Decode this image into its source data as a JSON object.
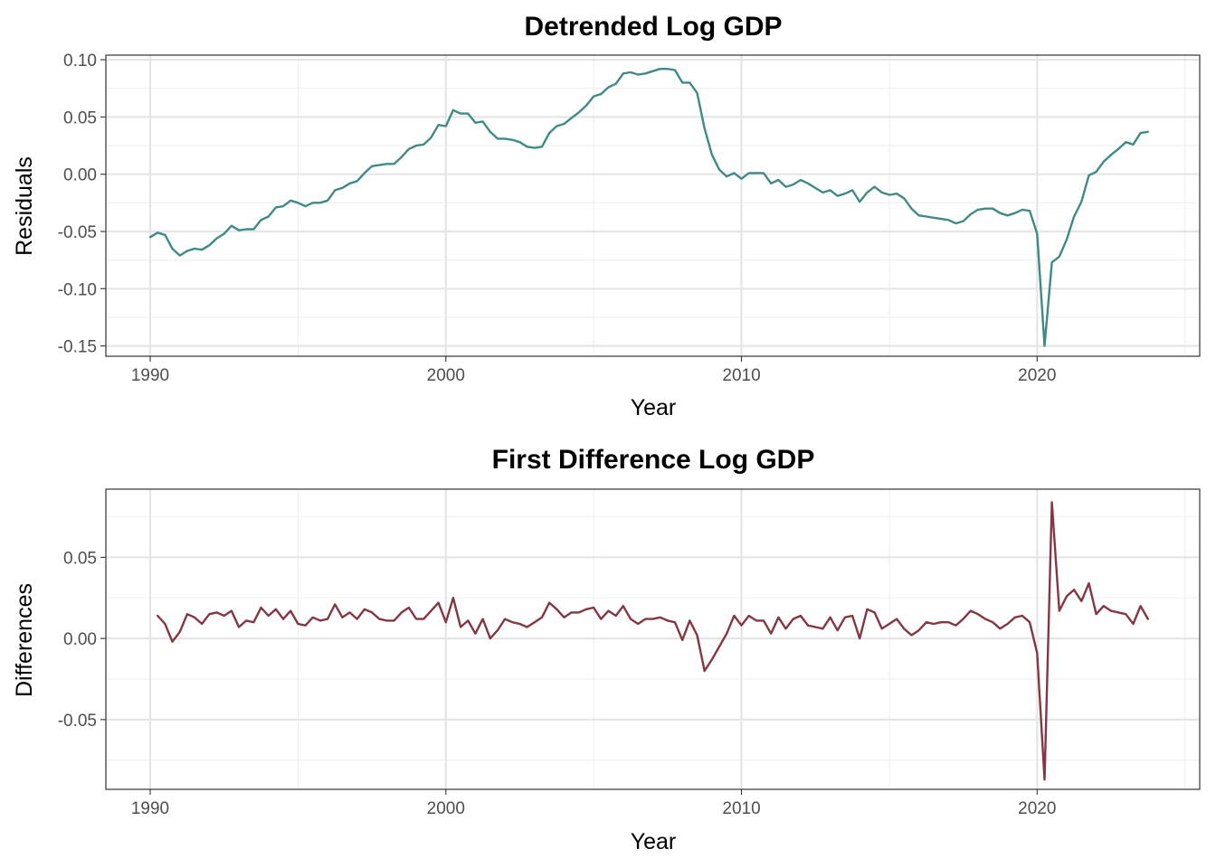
{
  "chart_data": [
    {
      "type": "line",
      "title": "Detrended Log GDP",
      "xlabel": "Year",
      "ylabel": "Residuals",
      "xlim": [
        1988.5,
        2025.5
      ],
      "ylim": [
        -0.159,
        0.104
      ],
      "xticks": [
        1990,
        2000,
        2010,
        2020
      ],
      "xtick_labels": [
        "1990",
        "2000",
        "2010",
        "2020"
      ],
      "yticks": [
        -0.15,
        -0.1,
        -0.05,
        0.0,
        0.05,
        0.1
      ],
      "ytick_labels": [
        "-0.15",
        "-0.10",
        "-0.05",
        "0.00",
        "0.05",
        "0.10"
      ],
      "grid": true,
      "color": "#3f8a86",
      "series": [
        {
          "x": [
            1990.0,
            1990.25,
            1990.5,
            1990.75,
            1991.0,
            1991.25,
            1991.5,
            1991.75,
            1992.0,
            1992.25,
            1992.5,
            1992.75,
            1993.0,
            1993.25,
            1993.5,
            1993.75,
            1994.0,
            1994.25,
            1994.5,
            1994.75,
            1995.0,
            1995.25,
            1995.5,
            1995.75,
            1996.0,
            1996.25,
            1996.5,
            1996.75,
            1997.0,
            1997.25,
            1997.5,
            1997.75,
            1998.0,
            1998.25,
            1998.5,
            1998.75,
            1999.0,
            1999.25,
            1999.5,
            1999.75,
            2000.0,
            2000.25,
            2000.5,
            2000.75,
            2001.0,
            2001.25,
            2001.5,
            2001.75,
            2002.0,
            2002.25,
            2002.5,
            2002.75,
            2003.0,
            2003.25,
            2003.5,
            2003.75,
            2004.0,
            2004.25,
            2004.5,
            2004.75,
            2005.0,
            2005.25,
            2005.5,
            2005.75,
            2006.0,
            2006.25,
            2006.5,
            2006.75,
            2007.0,
            2007.25,
            2007.5,
            2007.75,
            2008.0,
            2008.25,
            2008.5,
            2008.75,
            2009.0,
            2009.25,
            2009.5,
            2009.75,
            2010.0,
            2010.25,
            2010.5,
            2010.75,
            2011.0,
            2011.25,
            2011.5,
            2011.75,
            2012.0,
            2012.25,
            2012.5,
            2012.75,
            2013.0,
            2013.25,
            2013.5,
            2013.75,
            2014.0,
            2014.25,
            2014.5,
            2014.75,
            2015.0,
            2015.25,
            2015.5,
            2015.75,
            2016.0,
            2016.25,
            2016.5,
            2016.75,
            2017.0,
            2017.25,
            2017.5,
            2017.75,
            2018.0,
            2018.25,
            2018.5,
            2018.75,
            2019.0,
            2019.25,
            2019.5,
            2019.75,
            2020.0,
            2020.25,
            2020.5,
            2020.75,
            2021.0,
            2021.25,
            2021.5,
            2021.75,
            2022.0,
            2022.25,
            2022.5,
            2022.75,
            2023.0,
            2023.25,
            2023.5,
            2023.75
          ],
          "values": [
            -0.055,
            -0.051,
            -0.053,
            -0.065,
            -0.071,
            -0.067,
            -0.065,
            -0.066,
            -0.062,
            -0.056,
            -0.052,
            -0.045,
            -0.049,
            -0.048,
            -0.048,
            -0.04,
            -0.037,
            -0.029,
            -0.028,
            -0.023,
            -0.025,
            -0.028,
            -0.025,
            -0.025,
            -0.023,
            -0.014,
            -0.012,
            -0.008,
            -0.006,
            0.001,
            0.007,
            0.008,
            0.009,
            0.009,
            0.015,
            0.022,
            0.025,
            0.026,
            0.032,
            0.043,
            0.042,
            0.056,
            0.053,
            0.053,
            0.045,
            0.046,
            0.037,
            0.031,
            0.031,
            0.03,
            0.028,
            0.024,
            0.023,
            0.024,
            0.036,
            0.042,
            0.044,
            0.049,
            0.054,
            0.06,
            0.068,
            0.07,
            0.076,
            0.079,
            0.088,
            0.089,
            0.087,
            0.088,
            0.09,
            0.092,
            0.092,
            0.091,
            0.08,
            0.08,
            0.071,
            0.04,
            0.017,
            0.004,
            -0.002,
            0.001,
            -0.004,
            0.001,
            0.001,
            0.001,
            -0.008,
            -0.005,
            -0.011,
            -0.009,
            -0.005,
            -0.008,
            -0.012,
            -0.016,
            -0.014,
            -0.019,
            -0.017,
            -0.014,
            -0.024,
            -0.016,
            -0.011,
            -0.016,
            -0.018,
            -0.017,
            -0.021,
            -0.03,
            -0.036,
            -0.037,
            -0.038,
            -0.039,
            -0.04,
            -0.043,
            -0.041,
            -0.035,
            -0.031,
            -0.03,
            -0.03,
            -0.034,
            -0.036,
            -0.034,
            -0.031,
            -0.032,
            -0.052,
            -0.15,
            -0.077,
            -0.072,
            -0.057,
            -0.037,
            -0.024,
            -0.001,
            0.002,
            0.011,
            0.017,
            0.022,
            0.028,
            0.026,
            0.036,
            0.037
          ]
        }
      ]
    },
    {
      "type": "line",
      "title": "First Difference Log GDP",
      "xlabel": "Year",
      "ylabel": "Differences",
      "xlim": [
        1988.5,
        2025.5
      ],
      "ylim": [
        -0.093,
        0.092
      ],
      "xticks": [
        1990,
        2000,
        2010,
        2020
      ],
      "xtick_labels": [
        "1990",
        "2000",
        "2010",
        "2020"
      ],
      "yticks": [
        -0.05,
        0.0,
        0.05
      ],
      "ytick_labels": [
        "-0.05",
        "0.00",
        "0.05"
      ],
      "grid": true,
      "color": "#843743",
      "series": [
        {
          "x": [
            1990.25,
            1990.5,
            1990.75,
            1991.0,
            1991.25,
            1991.5,
            1991.75,
            1992.0,
            1992.25,
            1992.5,
            1992.75,
            1993.0,
            1993.25,
            1993.5,
            1993.75,
            1994.0,
            1994.25,
            1994.5,
            1994.75,
            1995.0,
            1995.25,
            1995.5,
            1995.75,
            1996.0,
            1996.25,
            1996.5,
            1996.75,
            1997.0,
            1997.25,
            1997.5,
            1997.75,
            1998.0,
            1998.25,
            1998.5,
            1998.75,
            1999.0,
            1999.25,
            1999.5,
            1999.75,
            2000.0,
            2000.25,
            2000.5,
            2000.75,
            2001.0,
            2001.25,
            2001.5,
            2001.75,
            2002.0,
            2002.25,
            2002.5,
            2002.75,
            2003.0,
            2003.25,
            2003.5,
            2003.75,
            2004.0,
            2004.25,
            2004.5,
            2004.75,
            2005.0,
            2005.25,
            2005.5,
            2005.75,
            2006.0,
            2006.25,
            2006.5,
            2006.75,
            2007.0,
            2007.25,
            2007.5,
            2007.75,
            2008.0,
            2008.25,
            2008.5,
            2008.75,
            2009.0,
            2009.25,
            2009.5,
            2009.75,
            2010.0,
            2010.25,
            2010.5,
            2010.75,
            2011.0,
            2011.25,
            2011.5,
            2011.75,
            2012.0,
            2012.25,
            2012.5,
            2012.75,
            2013.0,
            2013.25,
            2013.5,
            2013.75,
            2014.0,
            2014.25,
            2014.5,
            2014.75,
            2015.0,
            2015.25,
            2015.5,
            2015.75,
            2016.0,
            2016.25,
            2016.5,
            2016.75,
            2017.0,
            2017.25,
            2017.5,
            2017.75,
            2018.0,
            2018.25,
            2018.5,
            2018.75,
            2019.0,
            2019.25,
            2019.5,
            2019.75,
            2020.0,
            2020.25,
            2020.5,
            2020.75,
            2021.0,
            2021.25,
            2021.5,
            2021.75,
            2022.0,
            2022.25,
            2022.5,
            2022.75,
            2023.0,
            2023.25,
            2023.5,
            2023.75
          ],
          "values": [
            0.014,
            0.009,
            -0.002,
            0.004,
            0.015,
            0.013,
            0.009,
            0.015,
            0.016,
            0.014,
            0.017,
            0.007,
            0.011,
            0.01,
            0.019,
            0.014,
            0.018,
            0.012,
            0.017,
            0.009,
            0.008,
            0.013,
            0.011,
            0.012,
            0.021,
            0.013,
            0.016,
            0.012,
            0.018,
            0.016,
            0.012,
            0.011,
            0.011,
            0.016,
            0.019,
            0.012,
            0.012,
            0.017,
            0.022,
            0.01,
            0.025,
            0.007,
            0.011,
            0.003,
            0.012,
            0.0,
            0.005,
            0.012,
            0.01,
            0.009,
            0.007,
            0.01,
            0.013,
            0.022,
            0.018,
            0.013,
            0.016,
            0.016,
            0.018,
            0.019,
            0.012,
            0.017,
            0.014,
            0.02,
            0.012,
            0.009,
            0.012,
            0.012,
            0.013,
            0.011,
            0.01,
            -0.001,
            0.011,
            0.002,
            -0.02,
            -0.013,
            -0.005,
            0.003,
            0.014,
            0.008,
            0.014,
            0.011,
            0.011,
            0.003,
            0.013,
            0.006,
            0.012,
            0.014,
            0.008,
            0.007,
            0.006,
            0.013,
            0.005,
            0.013,
            0.014,
            0.0,
            0.018,
            0.016,
            0.006,
            0.009,
            0.012,
            0.006,
            0.002,
            0.005,
            0.01,
            0.009,
            0.01,
            0.01,
            0.008,
            0.012,
            0.017,
            0.015,
            0.012,
            0.01,
            0.006,
            0.009,
            0.013,
            0.014,
            0.01,
            -0.009,
            -0.087,
            0.084,
            0.017,
            0.026,
            0.03,
            0.023,
            0.034,
            0.015,
            0.02,
            0.017,
            0.016,
            0.015,
            0.009,
            0.02,
            0.012
          ]
        }
      ]
    }
  ]
}
